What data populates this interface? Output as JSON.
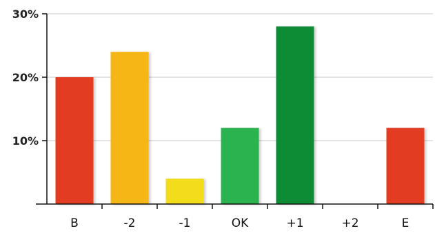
{
  "chart_data": {
    "type": "bar",
    "categories": [
      "B",
      "-2",
      "-1",
      "OK",
      "+1",
      "+2",
      "E"
    ],
    "values": [
      20,
      24,
      4,
      12,
      28,
      0,
      12
    ],
    "colors": [
      "#e23c24",
      "#f6b619",
      "#f2dc1f",
      "#2cb34f",
      "#0d8c35",
      "#ffffff",
      "#e23c24"
    ],
    "ylim": [
      0,
      30
    ],
    "yticks": [
      10,
      20,
      30
    ],
    "ytick_labels": [
      "10%",
      "20%",
      "30%"
    ],
    "grid": true,
    "grid_color": "#c8c8c8",
    "axis_color": "#111111",
    "title": "",
    "xlabel": "",
    "ylabel": ""
  }
}
